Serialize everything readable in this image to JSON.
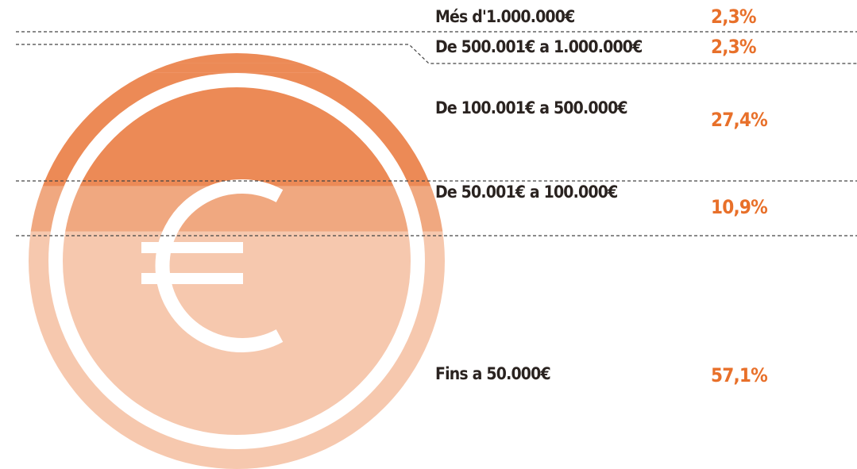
{
  "chart_data": {
    "type": "coin",
    "categories": [
      "Més d'1.000.000€",
      "De 500.001€ a 1.000.000€",
      "De 100.001€ a 500.000€",
      "De 50.001€ a 100.000€",
      "Fins a 50.000€"
    ],
    "values": [
      2.3,
      2.3,
      27.4,
      10.9,
      57.1
    ],
    "value_labels": [
      "2,3%",
      "2,3%",
      "27,4%",
      "10,9%",
      "57,1%"
    ],
    "colors": [
      "#ec8a56",
      "#ec8a56",
      "#ec8a56",
      "#f0a880",
      "#f6c8ae"
    ]
  }
}
